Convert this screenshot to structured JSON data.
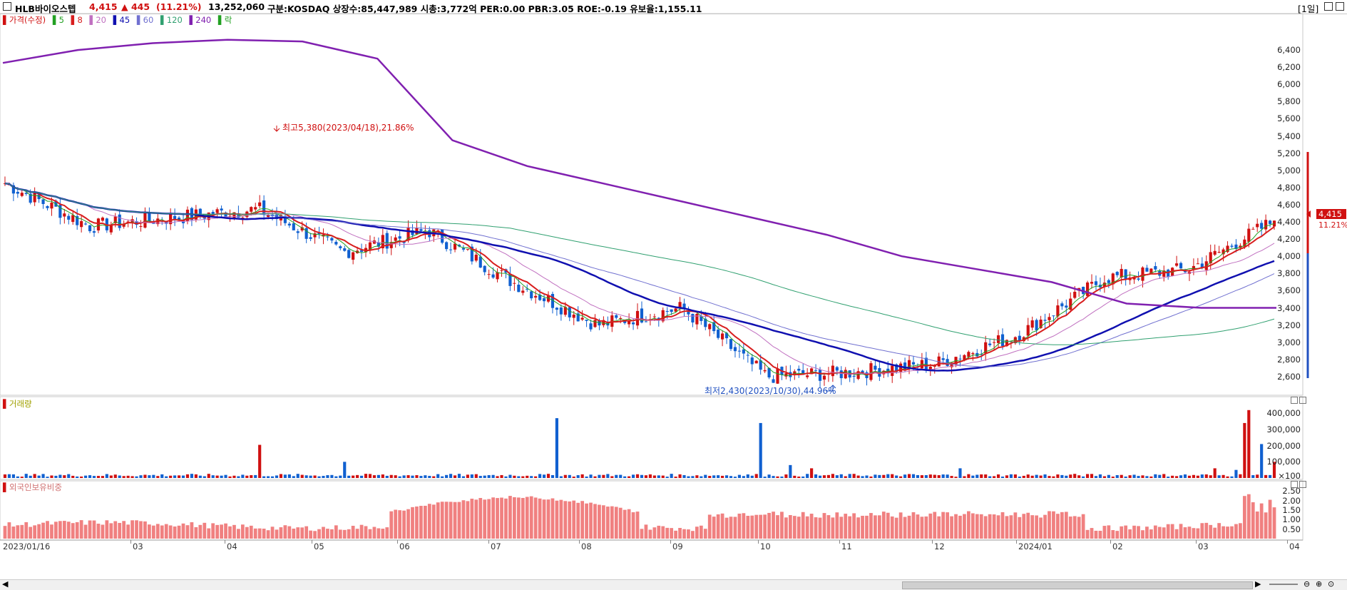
{
  "header": {
    "name": "HLB바이오스텝",
    "price": "4,415",
    "change": "▲ 445",
    "change_pct": "(11.21%)",
    "volume": "13,252,060",
    "info": "구분:KOSDAQ 상장수:85,447,989 시총:3,772억 PER:0.00 PBR:3.05 ROE:-0.19 유보율:1,155.11",
    "period": "[1일]"
  },
  "legend": {
    "price_label": "가격(수정)",
    "ma_labels": [
      "5",
      "8",
      "20",
      "45",
      "60",
      "120",
      "240"
    ],
    "fall_label": "락",
    "colors": {
      "ma5": "#22a022",
      "ma8": "#d81e1e",
      "ma20": "#c070c0",
      "ma45": "#1010b0",
      "ma60": "#7070d0",
      "ma120": "#30a070",
      "ma240": "#8020b0"
    }
  },
  "annotations": {
    "high": "최고5,380(2023/04/18),21.86%",
    "low": "최저2,430(2023/10/30),44.96%"
  },
  "current_price_tag": "4,415",
  "current_pct_tag": "11.21%",
  "volume_pane": {
    "title": "거래량",
    "ticks": [
      "400,000",
      "300,000",
      "200,000",
      "100,000",
      "×100"
    ]
  },
  "foreign_pane": {
    "title": "외국인보유비중",
    "ticks": [
      "2.50",
      "2.00",
      "1.50",
      "1.00",
      "0.50"
    ]
  },
  "chart_data": {
    "type": "candlestick",
    "title": "HLB바이오스텝",
    "x_tick_labels": [
      "2023/01/16",
      "03",
      "04",
      "05",
      "06",
      "07",
      "08",
      "09",
      "10",
      "11",
      "12",
      "2024/01",
      "02",
      "03",
      "04"
    ],
    "price_axis_ticks": [
      "6,400",
      "6,200",
      "6,000",
      "5,800",
      "5,600",
      "5,400",
      "5,200",
      "5,000",
      "4,800",
      "4,600",
      "4,400",
      "4,200",
      "4,000",
      "3,800",
      "3,600",
      "3,400",
      "3,200",
      "3,000",
      "2,800",
      "2,600"
    ],
    "price_ylim": [
      2430,
      6600
    ],
    "price_path_keypoints": [
      {
        "month": "2023/01",
        "close": 4850
      },
      {
        "month": "2023/02",
        "close": 4350
      },
      {
        "month": "2023/03",
        "close": 4450
      },
      {
        "month": "2023/04",
        "close": 4550
      },
      {
        "month": "2023/05",
        "close": 4050
      },
      {
        "month": "2023/06",
        "close": 4300
      },
      {
        "month": "2023/07",
        "close": 3700
      },
      {
        "month": "2023/08",
        "close": 3200
      },
      {
        "month": "2023/09",
        "close": 3400
      },
      {
        "month": "2023/10",
        "close": 2600
      },
      {
        "month": "2023/11",
        "close": 2650
      },
      {
        "month": "2023/12",
        "close": 2750
      },
      {
        "month": "2024/01",
        "close": 3100
      },
      {
        "month": "2024/02",
        "close": 3750
      },
      {
        "month": "2024/03",
        "close": 3850
      },
      {
        "month": "2024/03 end",
        "close": 4415
      }
    ],
    "high": {
      "value": 5380,
      "date": "2023/04/18"
    },
    "low": {
      "value": 2430,
      "date": "2023/10/30"
    },
    "volume_ylim": [
      0,
      450000
    ],
    "foreign_ratio_ylim": [
      0,
      2.7
    ]
  }
}
